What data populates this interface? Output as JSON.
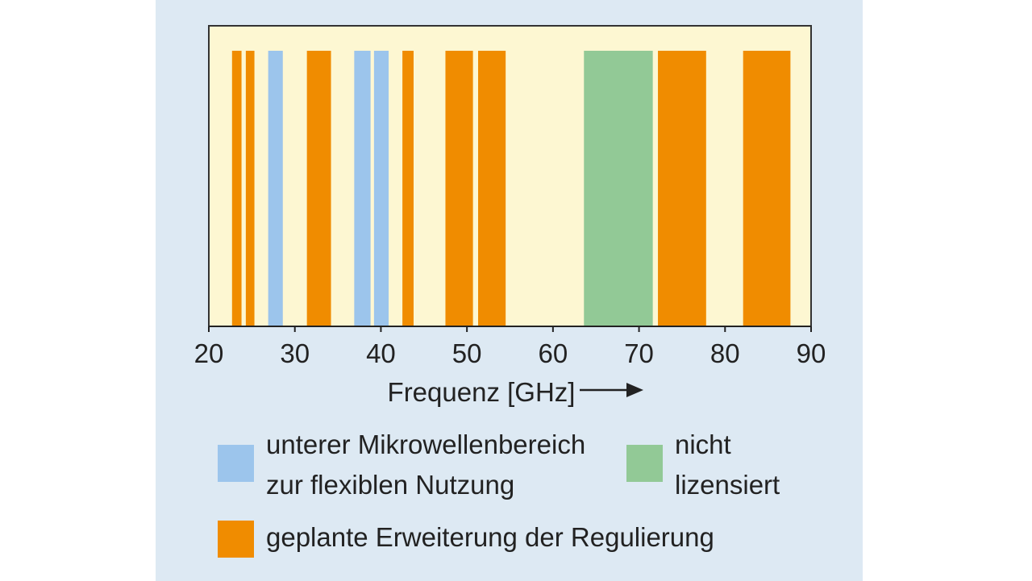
{
  "chart_data": {
    "type": "bar",
    "title": "",
    "xlabel": "Frequenz [GHz]",
    "ylabel": "",
    "xlim": [
      20,
      90
    ],
    "xticks": [
      20,
      30,
      40,
      50,
      60,
      70,
      80,
      90
    ],
    "grid": false,
    "colors": {
      "background": "#dde9f3",
      "plot_area": "#fdf7d2",
      "blue": "#9cc5ec",
      "green": "#92c996",
      "orange": "#f08c00"
    },
    "bands": [
      {
        "start": 22.7,
        "end": 23.8,
        "category": "orange"
      },
      {
        "start": 24.3,
        "end": 25.3,
        "category": "orange"
      },
      {
        "start": 26.9,
        "end": 28.6,
        "category": "blue"
      },
      {
        "start": 31.4,
        "end": 34.2,
        "category": "orange"
      },
      {
        "start": 36.9,
        "end": 38.8,
        "category": "blue"
      },
      {
        "start": 39.2,
        "end": 40.9,
        "category": "blue"
      },
      {
        "start": 42.5,
        "end": 43.8,
        "category": "orange"
      },
      {
        "start": 47.5,
        "end": 50.7,
        "category": "orange"
      },
      {
        "start": 51.3,
        "end": 54.5,
        "category": "orange"
      },
      {
        "start": 63.6,
        "end": 71.6,
        "category": "green"
      },
      {
        "start": 72.2,
        "end": 77.8,
        "category": "orange"
      },
      {
        "start": 82.1,
        "end": 87.6,
        "category": "orange"
      }
    ],
    "legend": [
      {
        "category": "blue",
        "lines": [
          "unterer Mikrowellenbereich",
          "zur flexiblen Nutzung"
        ]
      },
      {
        "category": "green",
        "lines": [
          "nicht",
          "lizensiert"
        ]
      },
      {
        "category": "orange",
        "lines": [
          "geplante Erweiterung der Regulierung"
        ]
      }
    ],
    "legend_placement": "bottom"
  }
}
